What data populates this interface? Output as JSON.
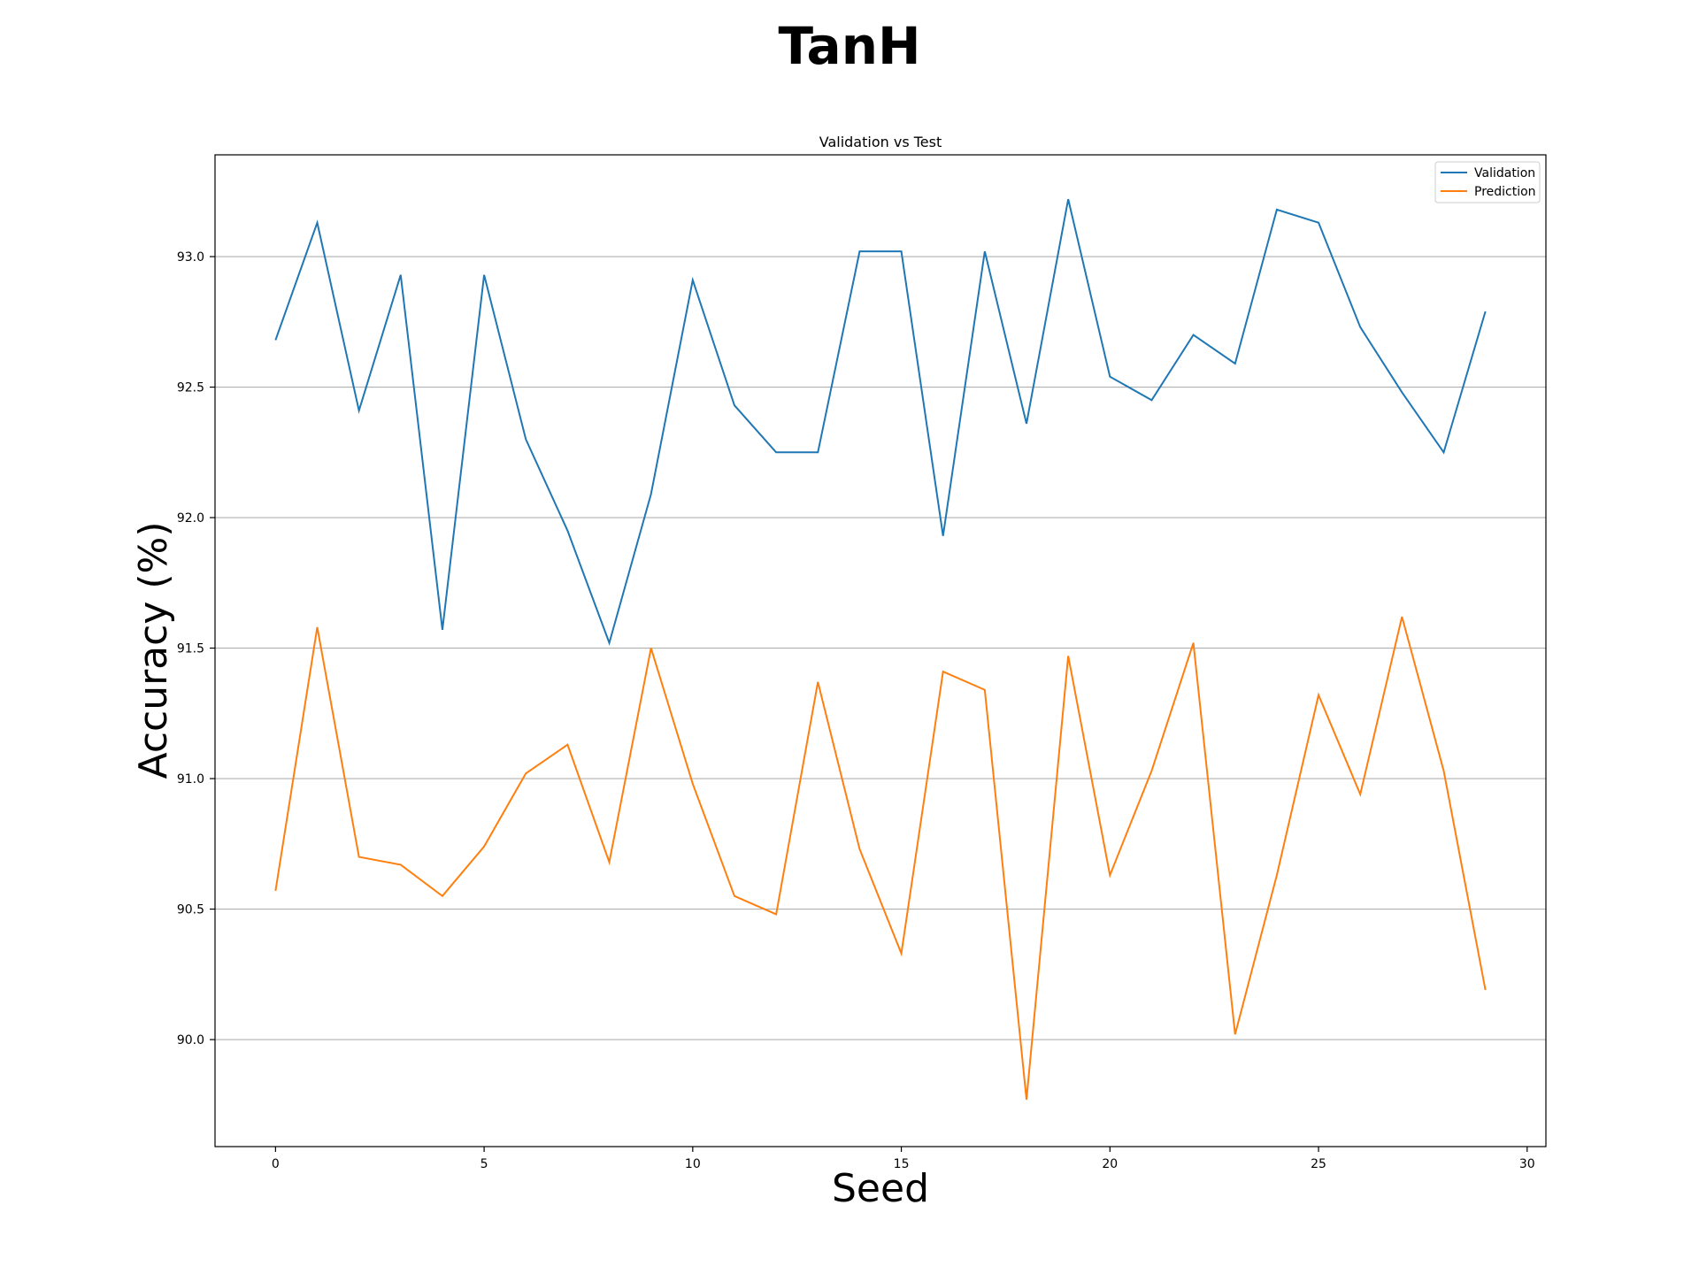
{
  "figure_title": "TanH",
  "chart_data": {
    "type": "line",
    "title": "Validation vs Test",
    "xlabel": "Seed",
    "ylabel": "Accuracy (%)",
    "xlim": [
      -1.45,
      30.45
    ],
    "ylim": [
      89.59,
      93.39
    ],
    "xticks": [
      0,
      5,
      10,
      15,
      20,
      25,
      30
    ],
    "yticks": [
      90.0,
      90.5,
      91.0,
      91.5,
      92.0,
      92.5,
      93.0
    ],
    "xtick_labels": [
      "0",
      "5",
      "10",
      "15",
      "20",
      "25",
      "30"
    ],
    "ytick_labels": [
      "90.0",
      "90.5",
      "91.0",
      "91.5",
      "92.0",
      "92.5",
      "93.0"
    ],
    "grid": "horizontal",
    "legend_position": "top-right",
    "x": [
      0,
      1,
      2,
      3,
      4,
      5,
      6,
      7,
      8,
      9,
      10,
      11,
      12,
      13,
      14,
      15,
      16,
      17,
      18,
      19,
      20,
      21,
      22,
      23,
      24,
      25,
      26,
      27,
      28,
      29
    ],
    "series": [
      {
        "name": "Validation",
        "color": "#1f77b4",
        "values": [
          92.68,
          93.13,
          92.41,
          92.93,
          91.57,
          92.93,
          92.3,
          91.95,
          91.52,
          92.09,
          92.91,
          92.43,
          92.25,
          92.25,
          93.02,
          93.02,
          91.93,
          93.02,
          92.36,
          93.22,
          92.54,
          92.45,
          92.7,
          92.59,
          93.18,
          93.13,
          92.73,
          92.48,
          92.25,
          92.79
        ]
      },
      {
        "name": "Prediction",
        "color": "#ff7f0e",
        "values": [
          90.57,
          91.58,
          90.7,
          90.67,
          90.55,
          90.74,
          91.02,
          91.13,
          90.68,
          91.5,
          90.98,
          90.55,
          90.48,
          91.37,
          90.73,
          90.33,
          91.41,
          91.34,
          89.77,
          91.47,
          90.63,
          91.03,
          91.52,
          90.02,
          90.63,
          91.32,
          90.94,
          91.62,
          91.03,
          90.19
        ]
      }
    ]
  }
}
